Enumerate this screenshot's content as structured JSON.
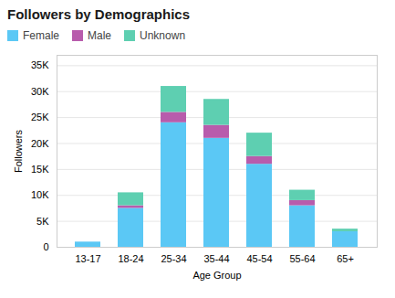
{
  "chart_data": {
    "type": "bar",
    "title": "Followers by Demographics",
    "xlabel": "Age Group",
    "ylabel": "Followers",
    "categories": [
      "13-17",
      "18-24",
      "25-34",
      "35-44",
      "45-54",
      "55-64",
      "65+"
    ],
    "series": [
      {
        "name": "Female",
        "color": "#5BC8F5",
        "values": [
          1000,
          7500,
          24000,
          21000,
          16000,
          8000,
          3000
        ]
      },
      {
        "name": "Male",
        "color": "#B85CAC",
        "values": [
          0,
          500,
          2000,
          2500,
          1500,
          1000,
          0
        ]
      },
      {
        "name": "Unknown",
        "color": "#5ECFB1",
        "values": [
          0,
          2500,
          5000,
          5000,
          4500,
          2000,
          500
        ]
      }
    ],
    "stacked": true,
    "ylim": [
      0,
      37000
    ],
    "yticks": [
      0,
      {
        "value": 5000,
        "label": "5K"
      },
      {
        "value": 10000,
        "label": "10K"
      },
      {
        "value": 15000,
        "label": "15K"
      },
      {
        "value": 20000,
        "label": "20K"
      },
      {
        "value": 25000,
        "label": "25K"
      },
      {
        "value": 30000,
        "label": "30K"
      },
      {
        "value": 35000,
        "label": "35K"
      }
    ],
    "grid": true,
    "legend": "upper left"
  }
}
